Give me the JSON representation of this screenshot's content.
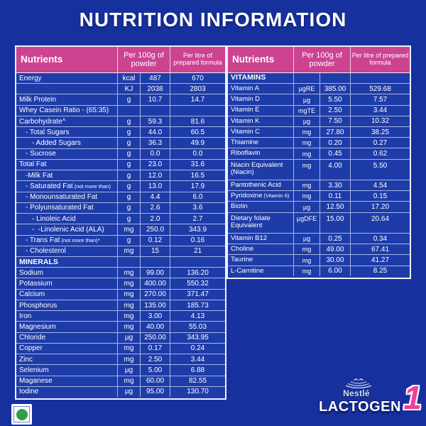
{
  "title": "NUTRITION INFORMATION",
  "colors": {
    "background": "#16309E",
    "cell": "#1E3CA8",
    "header_pink": "#CC4390",
    "grid": "#A5B6E8",
    "accent_pink": "#F23F97",
    "veg_green": "#2F9E49"
  },
  "left_table": {
    "headers": [
      "Nutrients",
      "Per 100g of powder",
      "Per litre of prepared formula"
    ],
    "rows": [
      {
        "name": "Energy",
        "unit": "kcal",
        "per100g": "487",
        "per_litre": "670",
        "indent": 0
      },
      {
        "name": "",
        "unit": "KJ",
        "per100g": "2038",
        "per_litre": "2803",
        "indent": 0
      },
      {
        "name": "Milk Protein",
        "unit": "g",
        "per100g": "10.7",
        "per_litre": "14.7",
        "indent": 0
      },
      {
        "name": "Whey Casein Ratio - (65:35)",
        "unit": "",
        "per100g": "",
        "per_litre": "",
        "indent": 0
      },
      {
        "name": "Carbohydrate^",
        "unit": "g",
        "per100g": "59.3",
        "per_litre": "81.6",
        "indent": 0
      },
      {
        "name": "- Total Sugars",
        "unit": "g",
        "per100g": "44.0",
        "per_litre": "60.5",
        "indent": 1
      },
      {
        "name": "- Added Sugars",
        "unit": "g",
        "per100g": "36.3",
        "per_litre": "49.9",
        "indent": 2
      },
      {
        "name": "- Sucrose",
        "unit": "g",
        "per100g": "0.0",
        "per_litre": "0.0",
        "indent": 1
      },
      {
        "name": "Total Fat",
        "unit": "g",
        "per100g": "23.0",
        "per_litre": "31.6",
        "indent": 0
      },
      {
        "name": "-Milk Fat",
        "unit": "g",
        "per100g": "12.0",
        "per_litre": "16.5",
        "indent": 1
      },
      {
        "name": "- Saturated Fat",
        "note": "(not more than)",
        "unit": "g",
        "per100g": "13.0",
        "per_litre": "17.9",
        "indent": 1
      },
      {
        "name": "- Monounsaturated Fat",
        "unit": "g",
        "per100g": "4.4",
        "per_litre": "6.0",
        "indent": 1
      },
      {
        "name": "- Polyunsaturated Fat",
        "unit": "g",
        "per100g": "2.6",
        "per_litre": "3.6",
        "indent": 1
      },
      {
        "name": "- Linoleic Acid",
        "unit": "g",
        "per100g": "2.0",
        "per_litre": "2.7",
        "indent": 2
      },
      {
        "name": "-  -Linolenic Acid (ALA)",
        "unit": "mg",
        "per100g": "250.0",
        "per_litre": "343.9",
        "indent": 2
      },
      {
        "name": "- Trans Fat",
        "note": "(not more than)*",
        "unit": "g",
        "per100g": "0.12",
        "per_litre": "0.16",
        "indent": 1
      },
      {
        "name": "- Cholesterol",
        "unit": "mg",
        "per100g": "15",
        "per_litre": "21",
        "indent": 1
      },
      {
        "name": "MINERALS",
        "unit": "",
        "per100g": "",
        "per_litre": "",
        "indent": 0,
        "section": true
      },
      {
        "name": "Sodium",
        "unit": "mg",
        "per100g": "99.00",
        "per_litre": "136.20",
        "indent": 0
      },
      {
        "name": "Potassium",
        "unit": "mg",
        "per100g": "400.00",
        "per_litre": "550.32",
        "indent": 0
      },
      {
        "name": "Calcium",
        "unit": "mg",
        "per100g": "270.00",
        "per_litre": "371.47",
        "indent": 0
      },
      {
        "name": "Phosphorus",
        "unit": "mg",
        "per100g": "135.00",
        "per_litre": "185.73",
        "indent": 0
      },
      {
        "name": "Iron",
        "unit": "mg",
        "per100g": "3.00",
        "per_litre": "4.13",
        "indent": 0
      },
      {
        "name": "Magnesium",
        "unit": "mg",
        "per100g": "40.00",
        "per_litre": "55.03",
        "indent": 0
      },
      {
        "name": "Chloride",
        "unit": "µg",
        "per100g": "250.00",
        "per_litre": "343.95",
        "indent": 0
      },
      {
        "name": "Copper",
        "unit": "mg",
        "per100g": "0.17",
        "per_litre": "0.24",
        "indent": 0
      },
      {
        "name": "Zinc",
        "unit": "mg",
        "per100g": "2.50",
        "per_litre": "3.44",
        "indent": 0
      },
      {
        "name": "Selenium",
        "unit": "µg",
        "per100g": "5.00",
        "per_litre": "6.88",
        "indent": 0
      },
      {
        "name": "Maganese",
        "unit": "mg",
        "per100g": "60.00",
        "per_litre": "82.55",
        "indent": 0
      },
      {
        "name": "Iodine",
        "unit": "µg",
        "per100g": "95.00",
        "per_litre": "130.70",
        "indent": 0
      }
    ]
  },
  "right_table": {
    "headers": [
      "Nutrients",
      "Per 100g of powder",
      "Per litre of prepared formula"
    ],
    "rows": [
      {
        "name": "VITAMINS",
        "unit": "",
        "per100g": "",
        "per_litre": "",
        "indent": 0,
        "section": true
      },
      {
        "name": "Vitamin A",
        "unit": "µgRE",
        "per100g": "385.00",
        "per_litre": "529.68",
        "indent": 0
      },
      {
        "name": "Vitamin D",
        "unit": "µg",
        "per100g": "5.50",
        "per_litre": "7.57",
        "indent": 0
      },
      {
        "name": "Vitamin E",
        "unit": "mgTE",
        "per100g": "2.50",
        "per_litre": "3.44",
        "indent": 0
      },
      {
        "name": "Vitamin K",
        "unit": "µg",
        "per100g": "7.50",
        "per_litre": "10.32",
        "indent": 0
      },
      {
        "name": "Vitamin C",
        "unit": "mg",
        "per100g": "27.80",
        "per_litre": "38.25",
        "indent": 0
      },
      {
        "name": "Thiamine",
        "unit": "mg",
        "per100g": "0.20",
        "per_litre": "0.27",
        "indent": 0
      },
      {
        "name": "Riboflavin",
        "unit": "mg",
        "per100g": "0.45",
        "per_litre": "0.62",
        "indent": 0
      },
      {
        "name": "Niacin Equivalent (Niacin)",
        "unit": "mg",
        "per100g": "4.00",
        "per_litre": "5.50",
        "indent": 0,
        "tall": true
      },
      {
        "name": "Pantothenic Acid",
        "unit": "mg",
        "per100g": "3.30",
        "per_litre": "4.54",
        "indent": 0
      },
      {
        "name": "Pyridoxine",
        "note": "(Vitamin 6)",
        "unit": "mg",
        "per100g": "0.11",
        "per_litre": "0.15",
        "indent": 0
      },
      {
        "name": "Biotin",
        "unit": "µg",
        "per100g": "12.50",
        "per_litre": "17.20",
        "indent": 0
      },
      {
        "name": "Dietary folate Equivalent",
        "unit": "µgDFE",
        "per100g": "15.00",
        "per_litre": "20.64",
        "indent": 0,
        "tall": true
      },
      {
        "name": "Vitamin B12",
        "unit": "µg",
        "per100g": "0.25",
        "per_litre": "0.34",
        "indent": 0
      },
      {
        "name": "Choline",
        "unit": "mg",
        "per100g": "49.00",
        "per_litre": "67.41",
        "indent": 0
      },
      {
        "name": "Taurine",
        "unit": "mg",
        "per100g": "30.00",
        "per_litre": "41.27",
        "indent": 0
      },
      {
        "name": "L-Carnitine",
        "unit": "mg",
        "per100g": "6.00",
        "per_litre": "8.25",
        "indent": 0
      }
    ]
  },
  "footer": {
    "veg_symbol": "vegetarian-green-dot",
    "brand": {
      "nestle": "Nestlé",
      "product": "LACTOGEN",
      "stage": "1"
    }
  }
}
